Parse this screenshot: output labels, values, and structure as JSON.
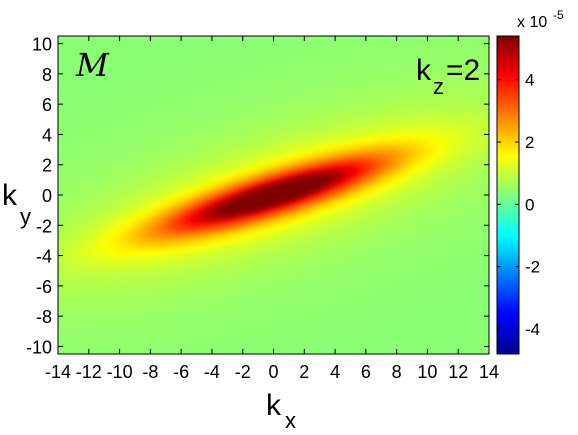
{
  "chart_data": {
    "type": "heatmap",
    "title": "",
    "x_range": [
      -14,
      14
    ],
    "y_range": [
      -10.5,
      10.5
    ],
    "x_ticks": [
      -14,
      -12,
      -10,
      -8,
      -6,
      -4,
      -2,
      0,
      2,
      4,
      6,
      8,
      10,
      12,
      14
    ],
    "y_ticks": [
      10,
      8,
      6,
      4,
      2,
      0,
      -2,
      -4,
      -6,
      -8,
      -10
    ],
    "x_label": "k",
    "x_label_sub": "x",
    "y_label": "k",
    "y_label_sub": "y",
    "annotation_symbol": "M",
    "annotation_text": "k",
    "annotation_sub": "z",
    "annotation_value": "=2",
    "colorbar": {
      "range": [
        -4.8,
        5.4
      ],
      "ticks": [
        4,
        2,
        0,
        -2,
        -4
      ],
      "exponent_base": "x 10",
      "exponent": "-5",
      "colormap": "jet"
    },
    "background_value": 0.4,
    "peak_value": 5.3,
    "feature": {
      "description": "elongated positive ridge",
      "center": [
        0,
        0
      ],
      "slope": 0.3,
      "extent_kx": [
        -9,
        9
      ]
    }
  }
}
